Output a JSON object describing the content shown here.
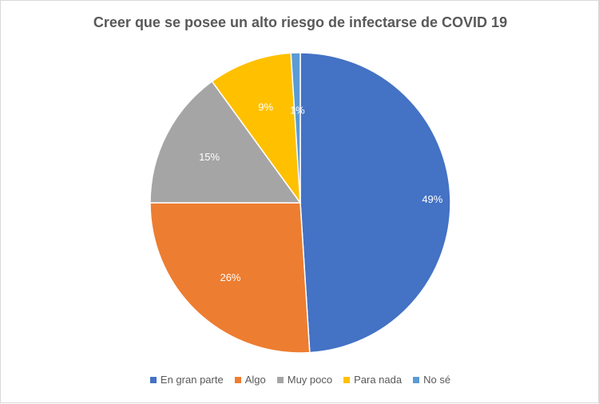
{
  "chart_data": {
    "type": "pie",
    "title": "Creer que se posee un alto riesgo de infectarse de COVID 19",
    "categories": [
      "En gran parte",
      "Algo",
      "Muy poco",
      "Para nada",
      "No sé"
    ],
    "values": [
      49,
      26,
      15,
      9,
      1
    ],
    "labels": [
      "49%",
      "26%",
      "15%",
      "9%",
      "1%"
    ],
    "colors": [
      "#4472C4",
      "#ED7D31",
      "#A5A5A5",
      "#FFC000",
      "#5B9BD5"
    ],
    "legend_position": "bottom",
    "start_angle": "top, clockwise"
  }
}
